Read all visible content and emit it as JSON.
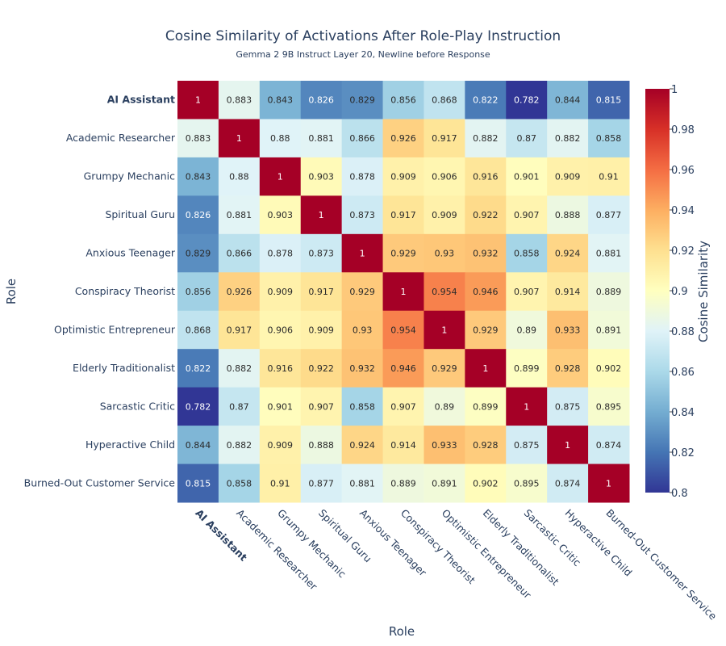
{
  "chart_data": {
    "type": "heatmap",
    "title": "Cosine Similarity of Activations After Role-Play Instruction",
    "subtitle": "Gemma 2 9B Instruct Layer 20, Newline before Response",
    "xlabel": "Role",
    "ylabel": "Role",
    "colorbar_title": "Cosine Similarity",
    "zlim": [
      0.8,
      1
    ],
    "colorbar_ticks": [
      "0.8",
      "0.82",
      "0.84",
      "0.86",
      "0.88",
      "0.9",
      "0.92",
      "0.94",
      "0.96",
      "0.98",
      "1"
    ],
    "colorscale": [
      "#313695",
      "#4575b4",
      "#74add1",
      "#abd9e9",
      "#e0f3f8",
      "#ffffbf",
      "#fee090",
      "#fdae61",
      "#f46d43",
      "#d73027",
      "#a50026"
    ],
    "bold_labels": [
      "AI Assistant"
    ],
    "labels": [
      "AI Assistant",
      "Academic Researcher",
      "Grumpy Mechanic",
      "Spiritual Guru",
      "Anxious Teenager",
      "Conspiracy Theorist",
      "Optimistic Entrepreneur",
      "Elderly Traditionalist",
      "Sarcastic Critic",
      "Hyperactive Child",
      "Burned-Out Customer Service"
    ],
    "values": [
      [
        1,
        0.883,
        0.843,
        0.826,
        0.829,
        0.856,
        0.868,
        0.822,
        0.782,
        0.844,
        0.815
      ],
      [
        0.883,
        1,
        0.88,
        0.881,
        0.866,
        0.926,
        0.917,
        0.882,
        0.87,
        0.882,
        0.858
      ],
      [
        0.843,
        0.88,
        1,
        0.903,
        0.878,
        0.909,
        0.906,
        0.916,
        0.901,
        0.909,
        0.91
      ],
      [
        0.826,
        0.881,
        0.903,
        1,
        0.873,
        0.917,
        0.909,
        0.922,
        0.907,
        0.888,
        0.877
      ],
      [
        0.829,
        0.866,
        0.878,
        0.873,
        1,
        0.929,
        0.93,
        0.932,
        0.858,
        0.924,
        0.881
      ],
      [
        0.856,
        0.926,
        0.909,
        0.917,
        0.929,
        1,
        0.954,
        0.946,
        0.907,
        0.914,
        0.889
      ],
      [
        0.868,
        0.917,
        0.906,
        0.909,
        0.93,
        0.954,
        1,
        0.929,
        0.89,
        0.933,
        0.891
      ],
      [
        0.822,
        0.882,
        0.916,
        0.922,
        0.932,
        0.946,
        0.929,
        1,
        0.899,
        0.928,
        0.902
      ],
      [
        0.782,
        0.87,
        0.901,
        0.907,
        0.858,
        0.907,
        0.89,
        0.899,
        1,
        0.875,
        0.895
      ],
      [
        0.844,
        0.882,
        0.909,
        0.888,
        0.924,
        0.914,
        0.933,
        0.928,
        0.875,
        1,
        0.874
      ],
      [
        0.815,
        0.858,
        0.91,
        0.877,
        0.881,
        0.889,
        0.891,
        0.902,
        0.895,
        0.874,
        1
      ]
    ]
  }
}
